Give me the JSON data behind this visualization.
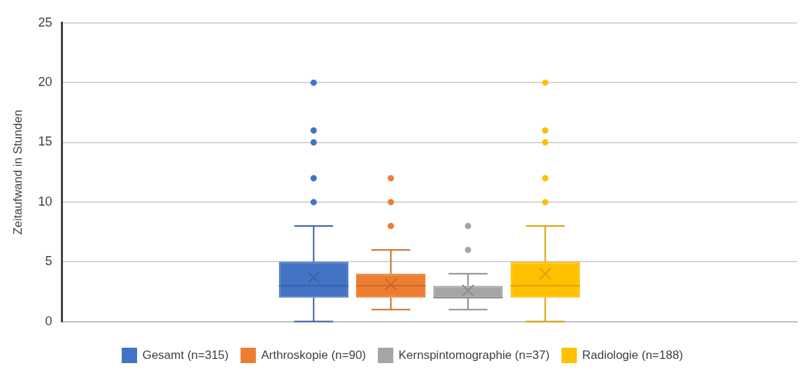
{
  "chart_data": {
    "type": "box",
    "ylabel": "Zeitaufwand in Stunden",
    "categories": [
      null
    ],
    "ylim": [
      0,
      25
    ],
    "yticks": [
      0,
      5,
      10,
      15,
      20,
      25
    ],
    "grid": "y",
    "legend": "bottom",
    "series": [
      {
        "name": "Gesamt (n=315)",
        "color": "#4472c4",
        "boxes": [
          {
            "low": 0,
            "q1": 2,
            "median": 3,
            "q3": 5,
            "high": 8,
            "mean": 3.7,
            "outliers": [
              10,
              12,
              15,
              16,
              20
            ]
          }
        ]
      },
      {
        "name": "Arthroskopie (n=90)",
        "color": "#ed7d31",
        "boxes": [
          {
            "low": 1,
            "q1": 2,
            "median": 3,
            "q3": 4,
            "high": 6,
            "mean": 3.1,
            "outliers": [
              8,
              10,
              12
            ]
          }
        ]
      },
      {
        "name": "Kernspintomographie (n=37)",
        "color": "#a5a5a5",
        "boxes": [
          {
            "low": 1,
            "q1": 2,
            "median": 2,
            "q3": 3,
            "high": 4,
            "mean": 2.6,
            "outliers": [
              6,
              8
            ]
          }
        ]
      },
      {
        "name": "Radiologie (n=188)",
        "color": "#ffc000",
        "boxes": [
          {
            "low": 0,
            "q1": 2,
            "median": 3,
            "q3": 5,
            "high": 8,
            "mean": 4.0,
            "outliers": [
              10,
              12,
              15,
              16,
              20
            ]
          }
        ]
      }
    ]
  }
}
